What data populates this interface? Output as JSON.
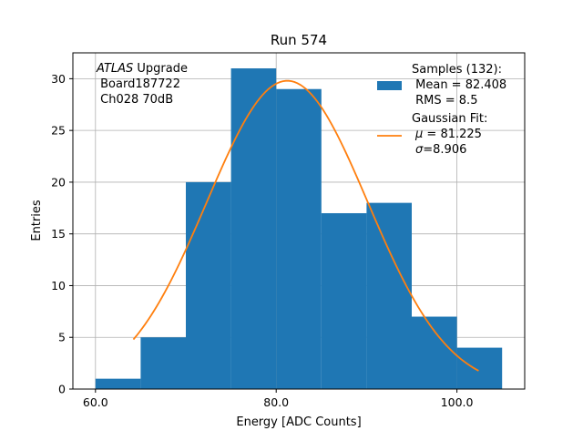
{
  "chart_data": {
    "type": "bar",
    "title": "Run 574",
    "xlabel": "Energy [ADC Counts]",
    "ylabel": "Entries",
    "xlim": [
      57.5,
      107.5
    ],
    "ylim": [
      0,
      32.5
    ],
    "grid": true,
    "x_ticks": [
      {
        "value": 60,
        "label": "60.0"
      },
      {
        "value": 80,
        "label": "80.0"
      },
      {
        "value": 100,
        "label": "100.0"
      }
    ],
    "y_ticks": [
      {
        "value": 0,
        "label": "0"
      },
      {
        "value": 5,
        "label": "5"
      },
      {
        "value": 10,
        "label": "10"
      },
      {
        "value": 15,
        "label": "15"
      },
      {
        "value": 20,
        "label": "20"
      },
      {
        "value": 25,
        "label": "25"
      },
      {
        "value": 30,
        "label": "30"
      }
    ],
    "bin_edges": [
      60,
      65,
      70,
      75,
      80,
      85,
      90,
      95,
      100,
      105
    ],
    "values": [
      1,
      5,
      20,
      31,
      29,
      17,
      18,
      7,
      4
    ],
    "series": [
      {
        "name": "Samples (132):",
        "type": "histogram",
        "color": "#1f77b4",
        "mean": "82.408",
        "rms": "8.5"
      },
      {
        "name": "Gaussian Fit:",
        "type": "line",
        "color": "#ff7f0e",
        "mu": "81.225",
        "sigma": "8.906",
        "amplitude": 29.8,
        "x_range": [
          64.2,
          102.4
        ]
      }
    ],
    "legend": {
      "placement": "top-right",
      "samples_title": "Samples (132):",
      "samples_mean": " Mean = 82.408",
      "samples_rms": " RMS = 8.5",
      "fit_title": "Gaussian Fit:",
      "fit_mu": " = 81.225",
      "fit_mu_symbol": "μ",
      "fit_sigma": "=8.906",
      "fit_sigma_symbol": "σ"
    },
    "annotation": {
      "placement": "top-left",
      "line1_italic": "ATLAS",
      "line1_rest": " Upgrade",
      "line2": " Board187722",
      "line3": " Ch028 70dB"
    }
  }
}
